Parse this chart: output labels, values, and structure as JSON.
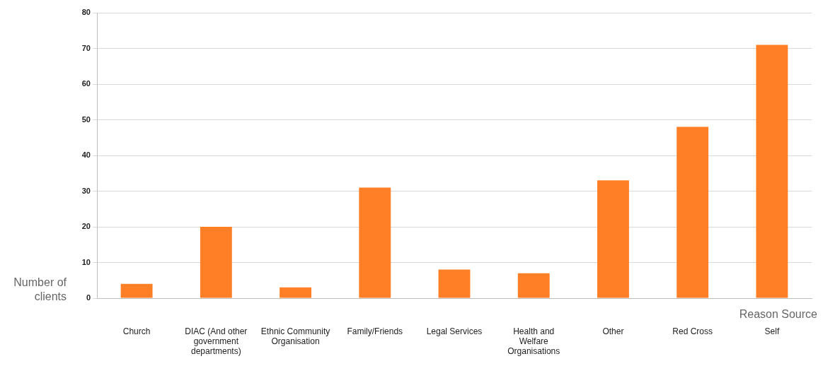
{
  "chart_data": {
    "type": "bar",
    "xlabel": "Reason Source",
    "ylabel": "Number of clients",
    "categories": [
      "Church",
      "DIAC (And other government departments)",
      "Ethnic Community Organisation",
      "Family/Friends",
      "Legal Services",
      "Health and Welfare Organisations",
      "Other",
      "Red Cross",
      "Self"
    ],
    "values": [
      4,
      20,
      3,
      31,
      8,
      7,
      33,
      48,
      71
    ],
    "color": "#ff7f27",
    "ylim": [
      0,
      80
    ],
    "yticks": [
      0,
      10,
      20,
      30,
      40,
      50,
      60,
      70,
      80
    ],
    "grid": "y",
    "legend": false
  }
}
